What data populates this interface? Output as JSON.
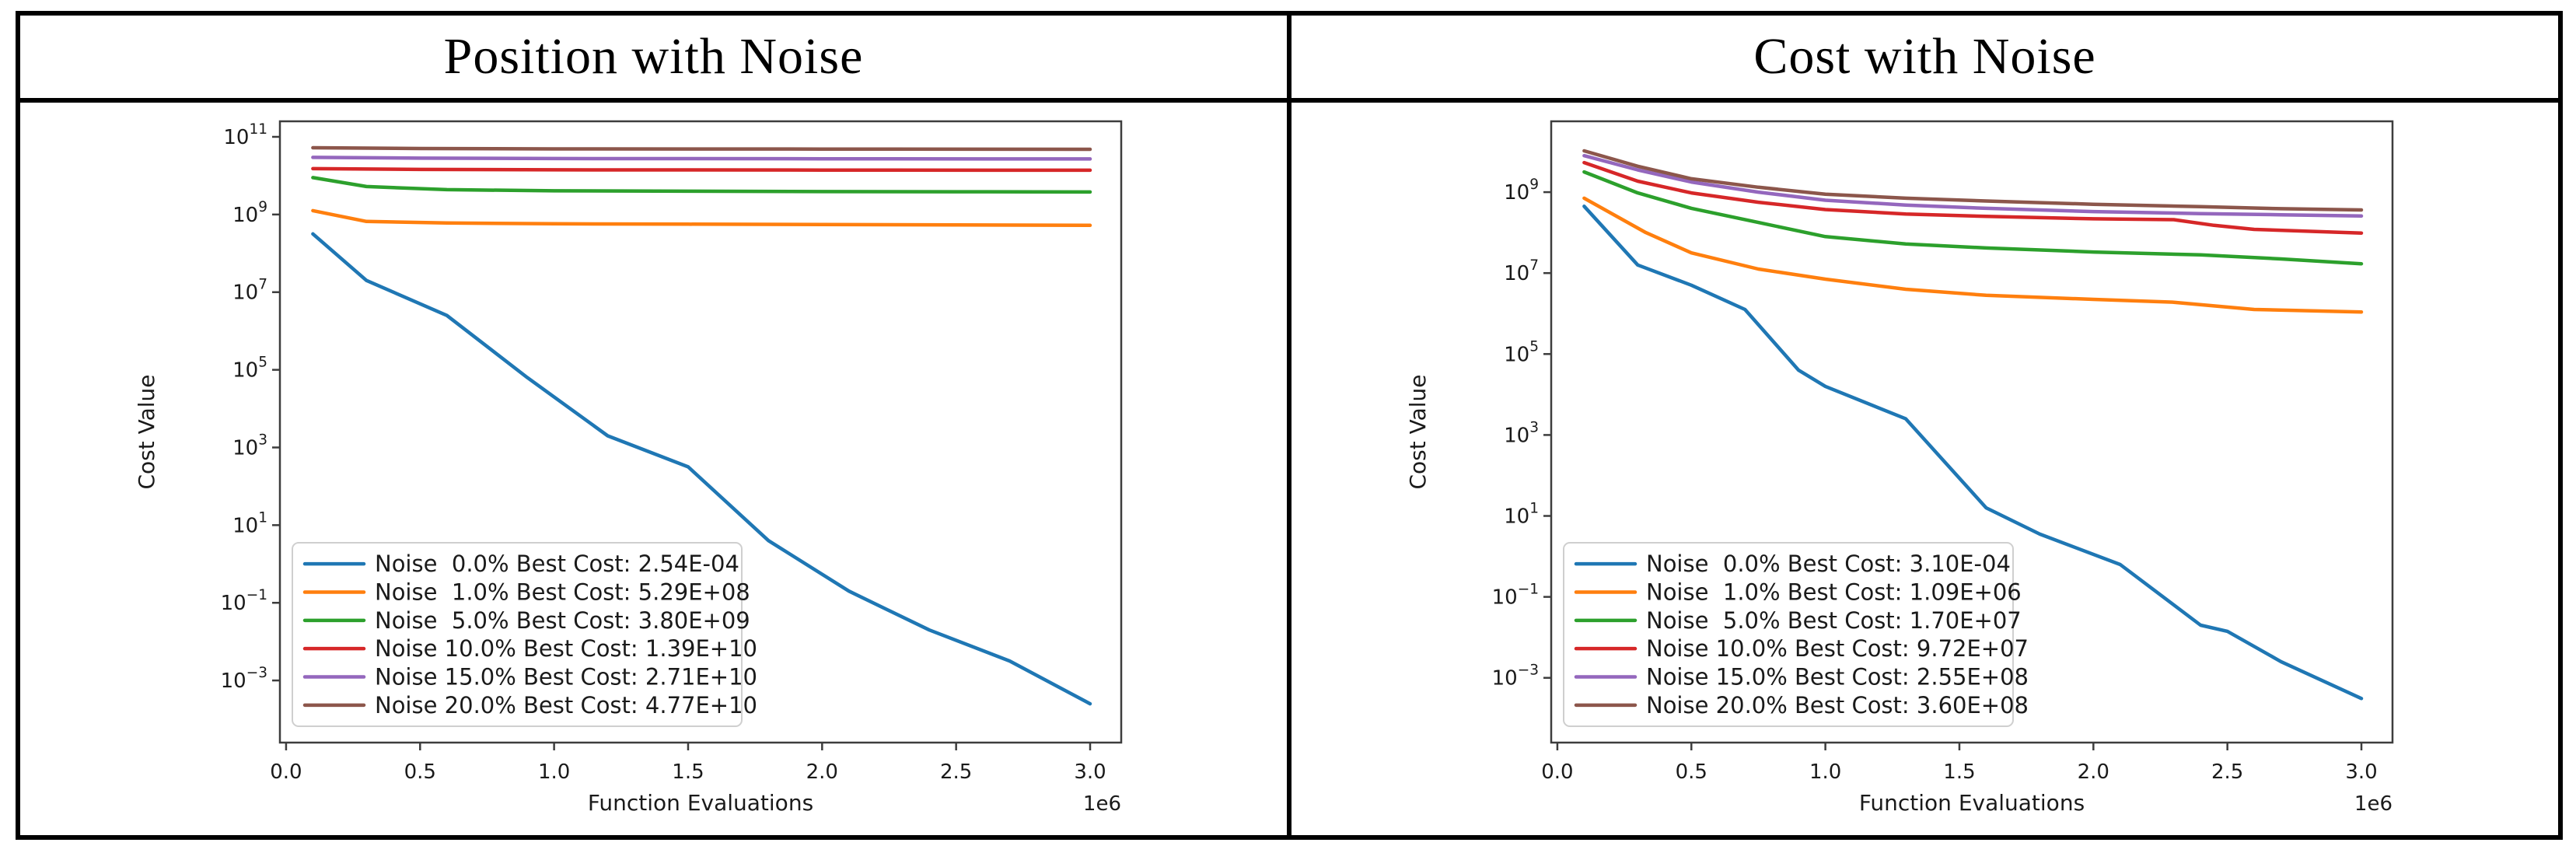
{
  "figure": {
    "background": "#ffffff",
    "border_color": "#000000",
    "text_color": "#1a1a1a",
    "spine_color": "#3d3d3d",
    "legend_border_color": "#cfcfcf"
  },
  "chart_data": [
    {
      "type": "line",
      "title": "Position with Noise",
      "xlabel": "Function Evaluations",
      "ylabel": "Cost Value",
      "x_offset_label": "1e6",
      "x_units": "millions of function evaluations",
      "yscale": "log",
      "xlim": [
        -0.023,
        3.116
      ],
      "xticks": [
        0.0,
        0.5,
        1.0,
        1.5,
        2.0,
        2.5,
        3.0
      ],
      "ylim_log10": [
        -4.6,
        11.4
      ],
      "yticks_log10": [
        11,
        9,
        7,
        5,
        3,
        1,
        -1,
        -3
      ],
      "grid": false,
      "legend_position": "lower left",
      "series": [
        {
          "name": "Noise  0.0% Best Cost: 2.54E-04",
          "color": "#1f77b4",
          "x": [
            0.1,
            0.3,
            0.6,
            0.9,
            1.2,
            1.5,
            1.8,
            2.1,
            2.4,
            2.7,
            3.0
          ],
          "y_log10": [
            8.5,
            7.3,
            6.4,
            4.8,
            3.3,
            2.5,
            0.6,
            -0.7,
            -1.7,
            -2.5,
            -3.6
          ]
        },
        {
          "name": "Noise  1.0% Best Cost: 5.29E+08",
          "color": "#ff7f0e",
          "x": [
            0.1,
            0.3,
            0.6,
            1.0,
            1.5,
            2.0,
            2.5,
            3.0
          ],
          "y_log10": [
            9.1,
            8.82,
            8.78,
            8.76,
            8.75,
            8.74,
            8.73,
            8.72
          ]
        },
        {
          "name": "Noise  5.0% Best Cost: 3.80E+09",
          "color": "#2ca02c",
          "x": [
            0.1,
            0.3,
            0.6,
            1.0,
            1.5,
            2.0,
            2.5,
            3.0
          ],
          "y_log10": [
            9.95,
            9.72,
            9.64,
            9.61,
            9.6,
            9.59,
            9.585,
            9.58
          ]
        },
        {
          "name": "Noise 10.0% Best Cost: 1.39E+10",
          "color": "#d62728",
          "x": [
            0.1,
            0.5,
            1.0,
            2.0,
            3.0
          ],
          "y_log10": [
            10.18,
            10.16,
            10.15,
            10.145,
            10.14
          ]
        },
        {
          "name": "Noise 15.0% Best Cost: 2.71E+10",
          "color": "#9467bd",
          "x": [
            0.1,
            0.5,
            1.0,
            2.0,
            3.0
          ],
          "y_log10": [
            10.47,
            10.45,
            10.44,
            10.435,
            10.43
          ]
        },
        {
          "name": "Noise 20.0% Best Cost: 4.77E+10",
          "color": "#8c564b",
          "x": [
            0.1,
            0.5,
            1.0,
            2.0,
            3.0
          ],
          "y_log10": [
            10.72,
            10.7,
            10.69,
            10.685,
            10.68
          ]
        }
      ]
    },
    {
      "type": "line",
      "title": "Cost with Noise",
      "xlabel": "Function Evaluations",
      "ylabel": "Cost Value",
      "x_offset_label": "1e6",
      "x_units": "millions of function evaluations",
      "yscale": "log",
      "xlim": [
        -0.023,
        3.116
      ],
      "xticks": [
        0.0,
        0.5,
        1.0,
        1.5,
        2.0,
        2.5,
        3.0
      ],
      "ylim_log10": [
        -4.6,
        10.75
      ],
      "yticks_log10": [
        9,
        7,
        5,
        3,
        1,
        -1,
        -3
      ],
      "grid": false,
      "legend_position": "lower left",
      "series": [
        {
          "name": "Noise  0.0% Best Cost: 3.10E-04",
          "color": "#1f77b4",
          "x": [
            0.1,
            0.3,
            0.5,
            0.7,
            0.9,
            1.0,
            1.3,
            1.6,
            1.8,
            2.1,
            2.4,
            2.5,
            2.7,
            3.0
          ],
          "y_log10": [
            8.65,
            7.2,
            6.7,
            6.1,
            4.6,
            4.2,
            3.4,
            1.2,
            0.55,
            -0.2,
            -1.7,
            -1.85,
            -2.6,
            -3.51
          ]
        },
        {
          "name": "Noise  1.0% Best Cost: 1.09E+06",
          "color": "#ff7f0e",
          "x": [
            0.1,
            0.33,
            0.5,
            0.75,
            1.0,
            1.3,
            1.6,
            2.0,
            2.3,
            2.6,
            3.0
          ],
          "y_log10": [
            8.85,
            8.0,
            7.5,
            7.1,
            6.85,
            6.6,
            6.45,
            6.35,
            6.28,
            6.1,
            6.04
          ]
        },
        {
          "name": "Noise  5.0% Best Cost: 1.70E+07",
          "color": "#2ca02c",
          "x": [
            0.1,
            0.3,
            0.5,
            0.75,
            1.0,
            1.3,
            1.6,
            2.0,
            2.4,
            2.7,
            3.0
          ],
          "y_log10": [
            9.5,
            8.98,
            8.6,
            8.25,
            7.9,
            7.72,
            7.62,
            7.52,
            7.45,
            7.35,
            7.23
          ]
        },
        {
          "name": "Noise 10.0% Best Cost: 9.72E+07",
          "color": "#d62728",
          "x": [
            0.1,
            0.3,
            0.5,
            0.75,
            1.0,
            1.3,
            1.6,
            2.0,
            2.3,
            2.45,
            2.6,
            3.0
          ],
          "y_log10": [
            9.73,
            9.27,
            8.98,
            8.75,
            8.57,
            8.46,
            8.4,
            8.34,
            8.32,
            8.18,
            8.08,
            7.99
          ]
        },
        {
          "name": "Noise 15.0% Best Cost: 2.55E+08",
          "color": "#9467bd",
          "x": [
            0.1,
            0.3,
            0.5,
            0.75,
            1.0,
            1.3,
            1.6,
            2.0,
            2.4,
            2.7,
            3.0
          ],
          "y_log10": [
            9.9,
            9.55,
            9.25,
            9.0,
            8.8,
            8.68,
            8.6,
            8.52,
            8.47,
            8.44,
            8.41
          ]
        },
        {
          "name": "Noise 20.0% Best Cost: 3.60E+08",
          "color": "#8c564b",
          "x": [
            0.1,
            0.3,
            0.5,
            0.75,
            1.0,
            1.3,
            1.6,
            2.0,
            2.4,
            2.7,
            3.0
          ],
          "y_log10": [
            10.02,
            9.64,
            9.33,
            9.12,
            8.95,
            8.85,
            8.78,
            8.7,
            8.64,
            8.59,
            8.56
          ]
        }
      ]
    }
  ]
}
